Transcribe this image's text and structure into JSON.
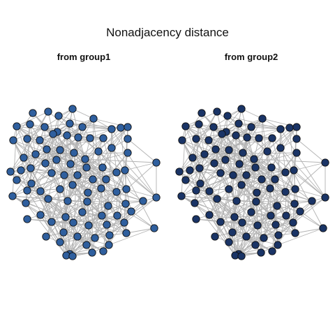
{
  "figure": {
    "title": "Nonadjacency distance"
  },
  "panels": [
    {
      "title": "from group1",
      "node_color": "#2f5f9e"
    },
    {
      "title": "from group2",
      "node_color": "#1a3466"
    }
  ],
  "colors": {
    "edge": "#b3b3b3",
    "node_outline": "#111111",
    "group1_node": "#2f5f9e",
    "group2_node": "#1a3466"
  }
}
